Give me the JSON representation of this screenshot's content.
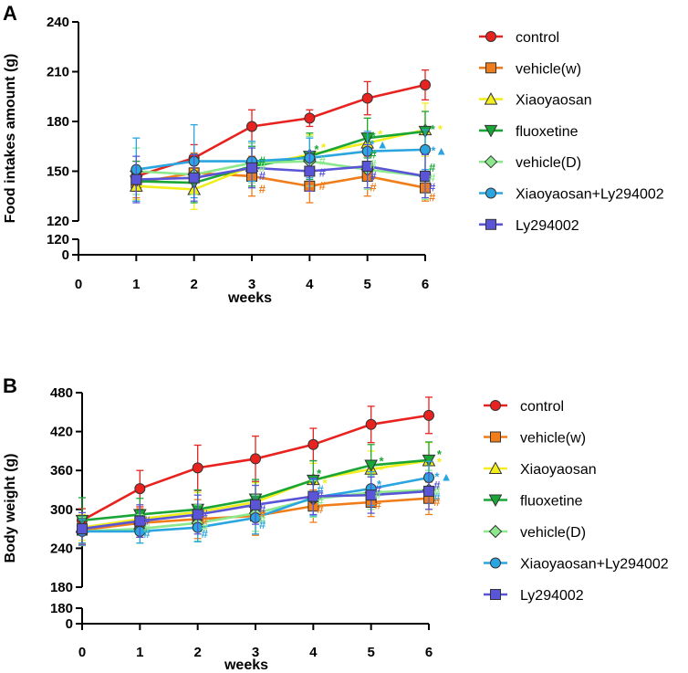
{
  "colors": {
    "control": "#e8231f",
    "vehicle_w": "#f07d1a",
    "xiaoyaosan": "#f2ee1c",
    "fluoxetine": "#1aa636",
    "vehicle_d": "#8ce88c",
    "xiaoyaosan_ly": "#2aa5e0",
    "ly294002": "#5a55d6"
  },
  "chart_data": [
    {
      "panel": "A",
      "type": "line",
      "xlabel": "weeks",
      "ylabel": "Food intakes amount (g)",
      "x": [
        1,
        2,
        3,
        4,
        5,
        6
      ],
      "x_ticks": [
        "0",
        "1",
        "2",
        "3",
        "4",
        "5",
        "6"
      ],
      "xlim": [
        0,
        6
      ],
      "ylim": [
        120,
        240
      ],
      "y_ticks": [
        "120",
        "150",
        "180",
        "210",
        "240"
      ],
      "broken_axis_ticks": [
        "120",
        "0"
      ],
      "series": [
        {
          "name": "control",
          "color_key": "control",
          "marker": "circle",
          "values": [
            147,
            158,
            177,
            182,
            194,
            202
          ],
          "err": [
            9,
            8,
            10,
            5,
            10,
            9
          ]
        },
        {
          "name": "vehicle(w)",
          "color_key": "vehicle_w",
          "marker": "square",
          "values": [
            143,
            149,
            147,
            141,
            147,
            140
          ],
          "err": [
            9,
            12,
            12,
            10,
            12,
            8
          ]
        },
        {
          "name": "Xiaoyaosan",
          "color_key": "xiaoyaosan",
          "marker": "triangle",
          "values": [
            141,
            139,
            153,
            160,
            167,
            175
          ],
          "err": [
            8,
            12,
            12,
            12,
            15,
            16
          ]
        },
        {
          "name": "fluoxetine",
          "color_key": "fluoxetine",
          "marker": "triangle-down",
          "values": [
            144,
            143,
            153,
            159,
            170,
            174
          ],
          "err": [
            12,
            12,
            12,
            14,
            12,
            12
          ]
        },
        {
          "name": "vehicle(D)",
          "color_key": "vehicle_d",
          "marker": "diamond",
          "values": [
            150,
            148,
            155,
            156,
            151,
            147
          ],
          "err": [
            14,
            12,
            12,
            15,
            12,
            14
          ]
        },
        {
          "name": "Xiaoyaosan+Ly294002",
          "color_key": "xiaoyaosan_ly",
          "marker": "circle",
          "values": [
            151,
            156,
            156,
            158,
            162,
            163
          ],
          "err": [
            19,
            22,
            12,
            12,
            12,
            12
          ]
        },
        {
          "name": "Ly294002",
          "color_key": "ly294002",
          "marker": "square",
          "values": [
            145,
            146,
            152,
            150,
            153,
            147
          ],
          "err": [
            14,
            14,
            12,
            12,
            13,
            13
          ]
        }
      ],
      "annotations": [
        {
          "x": 3.18,
          "y": 156,
          "text": "#",
          "color_key": "fluoxetine"
        },
        {
          "x": 3.18,
          "y": 152,
          "text": "#",
          "color_key": "vehicle_d"
        },
        {
          "x": 3.18,
          "y": 147,
          "text": "#",
          "color_key": "ly294002"
        },
        {
          "x": 3.18,
          "y": 139,
          "text": "#",
          "color_key": "vehicle_w"
        },
        {
          "x": 4.12,
          "y": 163,
          "text": "*",
          "color_key": "fluoxetine"
        },
        {
          "x": 4.24,
          "y": 164,
          "text": "*",
          "color_key": "xiaoyaosan"
        },
        {
          "x": 4.22,
          "y": 156,
          "text": "#",
          "color_key": "vehicle_d"
        },
        {
          "x": 4.22,
          "y": 149,
          "text": "#",
          "color_key": "ly294002"
        },
        {
          "x": 4.22,
          "y": 141,
          "text": "#",
          "color_key": "vehicle_w"
        },
        {
          "x": 5.1,
          "y": 171,
          "text": "*",
          "color_key": "fluoxetine"
        },
        {
          "x": 5.22,
          "y": 172,
          "text": "*",
          "color_key": "xiaoyaosan"
        },
        {
          "x": 5.08,
          "y": 166,
          "text": "*",
          "color_key": "xiaoyaosan_ly"
        },
        {
          "x": 5.26,
          "y": 166,
          "text": "▲",
          "color_key": "xiaoyaosan_ly"
        },
        {
          "x": 5.1,
          "y": 160,
          "text": "#",
          "color_key": "fluoxetine"
        },
        {
          "x": 5.1,
          "y": 154,
          "text": "#",
          "color_key": "vehicle_d"
        },
        {
          "x": 5.1,
          "y": 147,
          "text": "#",
          "color_key": "ly294002"
        },
        {
          "x": 5.1,
          "y": 140,
          "text": "#",
          "color_key": "vehicle_w"
        },
        {
          "x": 6.13,
          "y": 175,
          "text": "*",
          "color_key": "fluoxetine"
        },
        {
          "x": 6.26,
          "y": 175,
          "text": "*",
          "color_key": "xiaoyaosan"
        },
        {
          "x": 6.14,
          "y": 162,
          "text": "*",
          "color_key": "xiaoyaosan_ly"
        },
        {
          "x": 6.28,
          "y": 162,
          "text": "▲",
          "color_key": "xiaoyaosan_ly"
        },
        {
          "x": 6.12,
          "y": 152,
          "text": "#",
          "color_key": "fluoxetine"
        },
        {
          "x": 6.12,
          "y": 146,
          "text": "#",
          "color_key": "vehicle_d"
        },
        {
          "x": 6.12,
          "y": 140,
          "text": "#",
          "color_key": "ly294002"
        },
        {
          "x": 6.12,
          "y": 134,
          "text": "#",
          "color_key": "vehicle_w"
        }
      ]
    },
    {
      "panel": "B",
      "type": "line",
      "xlabel": "weeks",
      "ylabel": "Body weight (g)",
      "x": [
        0,
        1,
        2,
        3,
        4,
        5,
        6
      ],
      "x_ticks": [
        "0",
        "1",
        "2",
        "3",
        "4",
        "5",
        "6"
      ],
      "xlim": [
        0,
        6
      ],
      "ylim": [
        180,
        480
      ],
      "y_ticks": [
        "180",
        "240",
        "300",
        "360",
        "420",
        "480"
      ],
      "broken_axis_ticks": [
        "180",
        "0"
      ],
      "series": [
        {
          "name": "control",
          "color_key": "control",
          "marker": "circle",
          "values": [
            283,
            332,
            364,
            378,
            400,
            431,
            445
          ],
          "err": [
            18,
            28,
            35,
            35,
            25,
            28,
            28
          ]
        },
        {
          "name": "vehicle(w)",
          "color_key": "vehicle_w",
          "marker": "square",
          "values": [
            268,
            279,
            285,
            290,
            305,
            311,
            317
          ],
          "err": [
            22,
            22,
            30,
            30,
            25,
            22,
            25
          ]
        },
        {
          "name": "Xiaoyaosan",
          "color_key": "xiaoyaosan",
          "marker": "triangle",
          "values": [
            272,
            285,
            296,
            311,
            346,
            362,
            375
          ],
          "err": [
            20,
            22,
            30,
            30,
            25,
            28,
            28
          ]
        },
        {
          "name": "fluoxetine",
          "color_key": "fluoxetine",
          "marker": "triangle-down",
          "values": [
            283,
            292,
            300,
            316,
            345,
            368,
            376
          ],
          "err": [
            35,
            25,
            30,
            30,
            30,
            32,
            28
          ]
        },
        {
          "name": "vehicle(D)",
          "color_key": "vehicle_d",
          "marker": "diamond",
          "values": [
            266,
            270,
            279,
            294,
            316,
            326,
            330
          ],
          "err": [
            22,
            22,
            28,
            28,
            28,
            26,
            30
          ]
        },
        {
          "name": "Xiaoyaosan+Ly294002",
          "color_key": "xiaoyaosan_ly",
          "marker": "circle",
          "values": [
            266,
            266,
            272,
            287,
            318,
            332,
            349
          ],
          "err": [
            18,
            18,
            22,
            25,
            28,
            26,
            25
          ]
        },
        {
          "name": "Ly294002",
          "color_key": "ly294002",
          "marker": "square",
          "values": [
            270,
            282,
            292,
            307,
            320,
            322,
            328
          ],
          "err": [
            25,
            25,
            30,
            30,
            28,
            28,
            28
          ]
        }
      ],
      "annotations": [
        {
          "x": 1.12,
          "y": 282,
          "text": "#",
          "color_key": "ly294002"
        },
        {
          "x": 1.12,
          "y": 270,
          "text": "#",
          "color_key": "vehicle_d"
        },
        {
          "x": 1.12,
          "y": 262,
          "text": "#",
          "color_key": "xiaoyaosan_ly"
        },
        {
          "x": 2.12,
          "y": 292,
          "text": "#",
          "color_key": "ly294002"
        },
        {
          "x": 2.12,
          "y": 283,
          "text": "#",
          "color_key": "vehicle_w"
        },
        {
          "x": 2.12,
          "y": 272,
          "text": "#",
          "color_key": "vehicle_d"
        },
        {
          "x": 2.12,
          "y": 262,
          "text": "#",
          "color_key": "xiaoyaosan_ly"
        },
        {
          "x": 3.12,
          "y": 300,
          "text": "#",
          "color_key": "ly294002"
        },
        {
          "x": 3.12,
          "y": 292,
          "text": "#",
          "color_key": "vehicle_w"
        },
        {
          "x": 3.12,
          "y": 284,
          "text": "#",
          "color_key": "vehicle_d"
        },
        {
          "x": 3.12,
          "y": 276,
          "text": "#",
          "color_key": "xiaoyaosan_ly"
        },
        {
          "x": 4.1,
          "y": 355,
          "text": "*",
          "color_key": "fluoxetine"
        },
        {
          "x": 4.2,
          "y": 340,
          "text": "*",
          "color_key": "xiaoyaosan"
        },
        {
          "x": 4.12,
          "y": 330,
          "text": "#",
          "color_key": "xiaoyaosan_ly"
        },
        {
          "x": 4.12,
          "y": 322,
          "text": "#",
          "color_key": "ly294002"
        },
        {
          "x": 4.12,
          "y": 312,
          "text": "#",
          "color_key": "vehicle_d"
        },
        {
          "x": 4.12,
          "y": 300,
          "text": "#",
          "color_key": "vehicle_w"
        },
        {
          "x": 5.18,
          "y": 374,
          "text": "*",
          "color_key": "fluoxetine"
        },
        {
          "x": 5.18,
          "y": 360,
          "text": "*",
          "color_key": "xiaoyaosan"
        },
        {
          "x": 5.14,
          "y": 338,
          "text": "*",
          "color_key": "xiaoyaosan_ly"
        },
        {
          "x": 5.12,
          "y": 330,
          "text": "#",
          "color_key": "ly294002"
        },
        {
          "x": 5.12,
          "y": 322,
          "text": "#",
          "color_key": "vehicle_d"
        },
        {
          "x": 5.12,
          "y": 306,
          "text": "#",
          "color_key": "vehicle_w"
        },
        {
          "x": 6.18,
          "y": 384,
          "text": "*",
          "color_key": "fluoxetine"
        },
        {
          "x": 6.18,
          "y": 372,
          "text": "*",
          "color_key": "xiaoyaosan"
        },
        {
          "x": 6.14,
          "y": 350,
          "text": "*",
          "color_key": "xiaoyaosan_ly"
        },
        {
          "x": 6.3,
          "y": 350,
          "text": "▲",
          "color_key": "xiaoyaosan_ly"
        },
        {
          "x": 6.14,
          "y": 336,
          "text": "#",
          "color_key": "ly294002"
        },
        {
          "x": 6.14,
          "y": 328,
          "text": "#",
          "color_key": "vehicle_d"
        },
        {
          "x": 6.14,
          "y": 318,
          "text": "#",
          "color_key": "xiaoyaosan_ly"
        },
        {
          "x": 6.14,
          "y": 311,
          "text": "#",
          "color_key": "vehicle_w"
        }
      ]
    }
  ]
}
